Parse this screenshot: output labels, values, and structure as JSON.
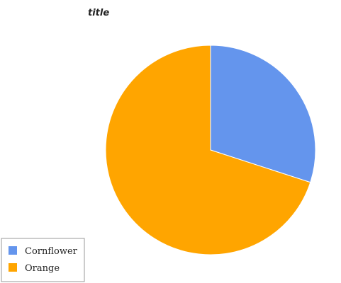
{
  "chart_data": {
    "type": "pie",
    "title": "title",
    "categories": [
      "Cornflower",
      "Orange"
    ],
    "values": [
      30,
      70
    ],
    "colors": [
      "#6495ED",
      "#FFA500"
    ],
    "legend_placement": "bottom-left",
    "start_angle_deg": -90,
    "direction": "clockwise"
  }
}
